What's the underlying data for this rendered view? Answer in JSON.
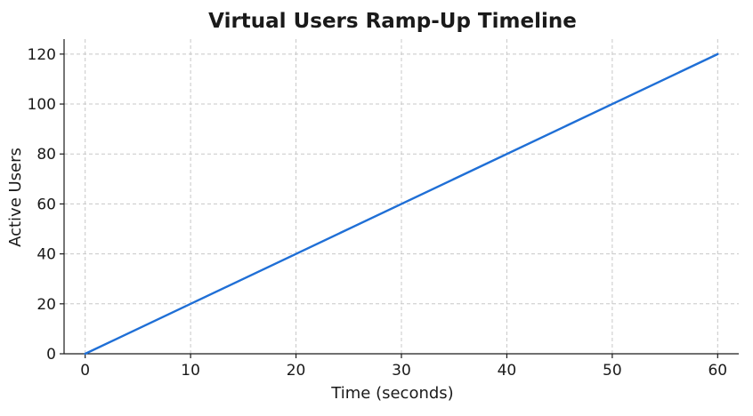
{
  "chart_data": {
    "type": "line",
    "title": "Virtual Users Ramp-Up Timeline",
    "xlabel": "Time (seconds)",
    "ylabel": "Active Users",
    "xlim": [
      -2,
      62
    ],
    "ylim": [
      0,
      126
    ],
    "x_ticks": [
      0,
      10,
      20,
      30,
      40,
      50,
      60
    ],
    "y_ticks": [
      0,
      20,
      40,
      60,
      80,
      100,
      120
    ],
    "grid": true,
    "series": [
      {
        "color": "#1f6fd6",
        "x": [
          0,
          60
        ],
        "y": [
          0,
          120
        ]
      }
    ]
  }
}
